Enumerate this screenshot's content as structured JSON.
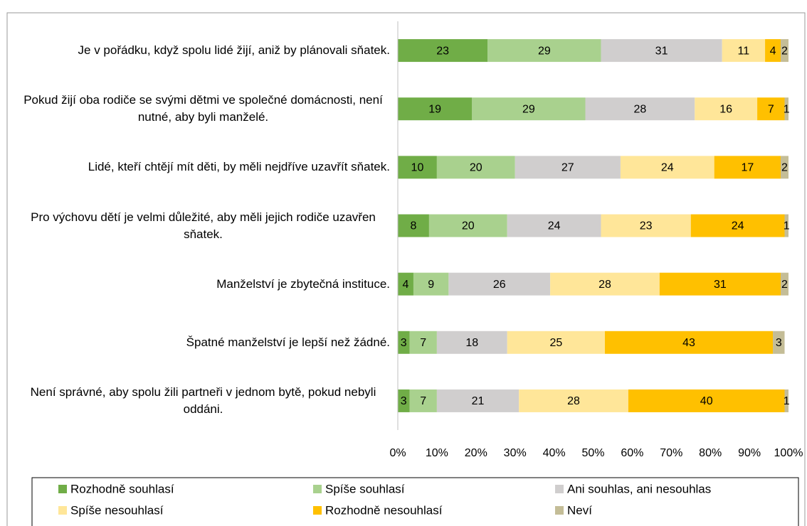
{
  "chart_data": {
    "type": "stacked-bar-horizontal",
    "categories": [
      "Je v pořádku, když spolu lidé žijí, aniž by plánovali sňatek.",
      "Pokud žijí oba rodiče se svými dětmi ve společné domácnosti, není nutné, aby byli manželé.",
      "Lidé, kteří chtějí mít děti, by měli nejdříve uzavřít sňatek.",
      "Pro výchovu dětí je velmi důležité, aby měli jejich rodiče uzavřen sňatek.",
      "Manželství je zbytečná instituce.",
      "Špatné manželství je lepší než žádné.",
      "Není správné, aby spolu žili partneři v jednom bytě, pokud nebyli oddáni."
    ],
    "series": [
      {
        "name": "Rozhodně souhlasí",
        "color": "#70ad47",
        "values": [
          23,
          19,
          10,
          8,
          4,
          3,
          3
        ]
      },
      {
        "name": "Spíše souhlasí",
        "color": "#a9d18e",
        "values": [
          29,
          29,
          20,
          20,
          9,
          7,
          7
        ]
      },
      {
        "name": "Ani souhlas, ani nesouhlas",
        "color": "#d0cece",
        "values": [
          31,
          28,
          27,
          24,
          26,
          18,
          21
        ]
      },
      {
        "name": "Spíše nesouhlasí",
        "color": "#ffe699",
        "values": [
          11,
          16,
          24,
          23,
          28,
          25,
          28
        ]
      },
      {
        "name": "Rozhodně nesouhlasí",
        "color": "#ffc000",
        "values": [
          4,
          7,
          17,
          24,
          31,
          43,
          40
        ]
      },
      {
        "name": "Neví",
        "color": "#c4bd97",
        "values": [
          2,
          1,
          2,
          1,
          2,
          3,
          1
        ]
      }
    ],
    "xlim": [
      0,
      100
    ],
    "xticks": [
      {
        "value": 0,
        "label": "0%"
      },
      {
        "value": 10,
        "label": "10%"
      },
      {
        "value": 20,
        "label": "20%"
      },
      {
        "value": 30,
        "label": "30%"
      },
      {
        "value": 40,
        "label": "40%"
      },
      {
        "value": 50,
        "label": "50%"
      },
      {
        "value": 60,
        "label": "60%"
      },
      {
        "value": 70,
        "label": "70%"
      },
      {
        "value": 80,
        "label": "80%"
      },
      {
        "value": 90,
        "label": "90%"
      },
      {
        "value": 100,
        "label": "100%"
      }
    ],
    "legend": "bottom"
  }
}
